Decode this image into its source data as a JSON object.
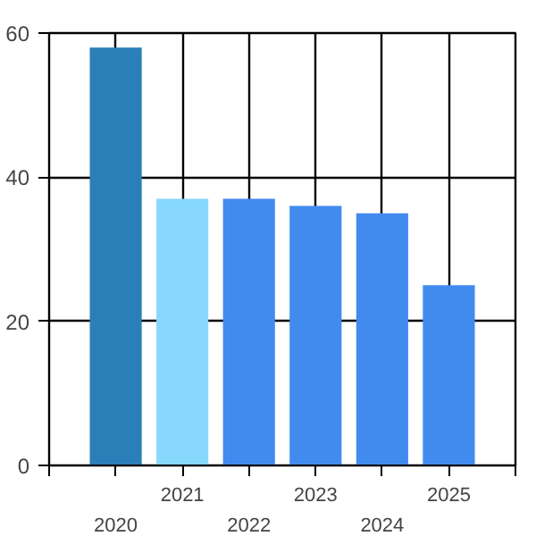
{
  "chart_data": {
    "type": "bar",
    "categories": [
      "2020",
      "2021",
      "2022",
      "2023",
      "2024",
      "2025"
    ],
    "values": [
      58,
      37,
      37,
      36,
      35,
      25
    ],
    "colors": [
      "#2a7fb8",
      "#88d8fd",
      "#418bef",
      "#418bef",
      "#418bef",
      "#418bef"
    ],
    "ylim": [
      0,
      60
    ],
    "yticks": [
      0,
      20,
      40,
      60
    ],
    "grid": true
  }
}
